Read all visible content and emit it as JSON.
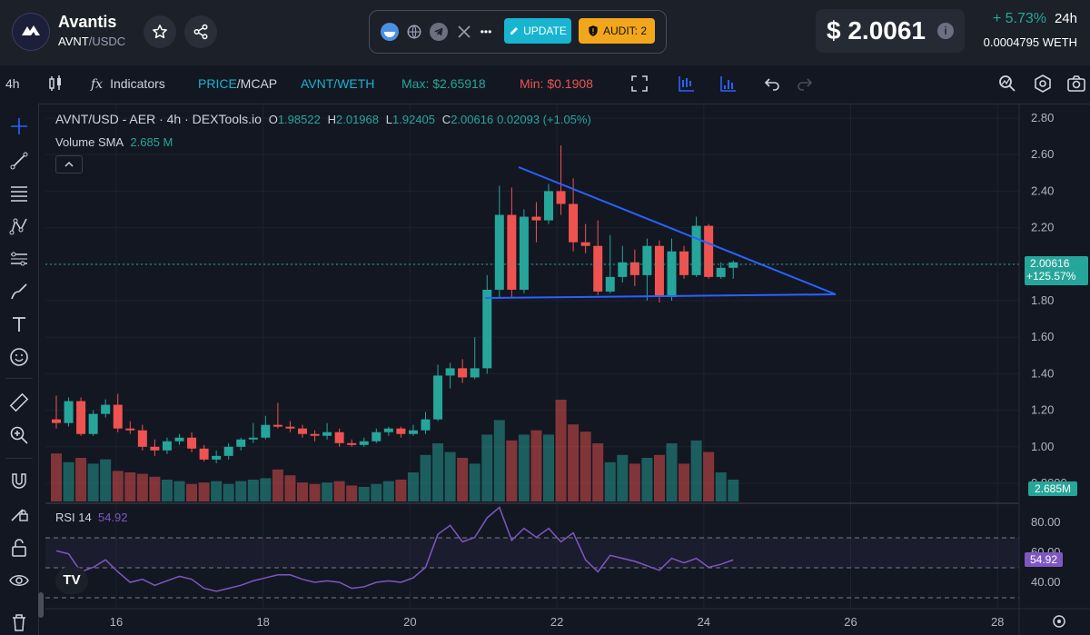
{
  "header": {
    "token_name": "Avantis",
    "base": "AVNT",
    "separator": "/",
    "quote": "USDC",
    "update_label": "UPDATE",
    "audit_label": "AUDIT: 2",
    "more_label": "•••",
    "price": "$ 2.0061",
    "info_label": "i",
    "change": "+ 5.73%",
    "period": "24h",
    "weth_value": "0.0004795  WETH"
  },
  "toolbar": {
    "interval": "4h",
    "indicators": "Indicators",
    "price_label": "PRICE",
    "mcap_label": "/MCAP",
    "pair_label": "AVNT/WETH",
    "max_label": "Max: $2.65918",
    "min_label": "Min: $0.1908"
  },
  "legend": {
    "title": "AVNT/USD - AER · 4h · DEXTools.io",
    "o_key": "O",
    "o_val": "1.98522",
    "h_key": "H",
    "h_val": "2.01968",
    "l_key": "L",
    "l_val": "1.92405",
    "c_key": "C",
    "c_val": "2.00616",
    "change": "0.02093 (+1.05%)",
    "volume_label": "Volume SMA",
    "volume_value": "2.685 M",
    "rsi_label": "RSI 14",
    "rsi_value": "54.92",
    "tv_logo": "TV"
  },
  "price_tag": {
    "price": "2.00616",
    "pct": "+125.57%"
  },
  "volume_tag": "2.685M",
  "rsi_tag": "54.92",
  "colors": {
    "up": "#26a69a",
    "down": "#ef5350",
    "trendline": "#2962ff",
    "rsi": "#7e57c2",
    "accent": "#17b5cf",
    "audit": "#f2a71b"
  },
  "chart_data": {
    "type": "candlestick",
    "price_axis_ticks": [
      "2.80",
      "2.60",
      "2.40",
      "2.20",
      "2.00",
      "1.80",
      "1.60",
      "1.40",
      "1.20",
      "1.00",
      "0.8000"
    ],
    "rsi_axis_ticks": [
      "80.00",
      "60.00",
      "40.00"
    ],
    "x_ticks": [
      "16",
      "18",
      "20",
      "22",
      "24",
      "26",
      "28"
    ],
    "candles": [
      [
        1.15,
        1.13,
        1.28,
        1.1
      ],
      [
        1.13,
        1.25,
        1.27,
        1.11
      ],
      [
        1.25,
        1.07,
        1.27,
        1.06
      ],
      [
        1.07,
        1.18,
        1.2,
        1.06
      ],
      [
        1.18,
        1.23,
        1.26,
        1.16
      ],
      [
        1.23,
        1.1,
        1.29,
        1.08
      ],
      [
        1.1,
        1.09,
        1.14,
        1.07
      ],
      [
        1.09,
        1.0,
        1.12,
        0.98
      ],
      [
        1.0,
        0.98,
        1.04,
        0.95
      ],
      [
        0.98,
        1.03,
        1.05,
        0.96
      ],
      [
        1.03,
        1.05,
        1.07,
        1.01
      ],
      [
        1.05,
        0.99,
        1.08,
        0.97
      ],
      [
        0.99,
        0.93,
        1.01,
        0.92
      ],
      [
        0.93,
        0.95,
        0.98,
        0.91
      ],
      [
        0.95,
        1.0,
        1.02,
        0.93
      ],
      [
        1.0,
        1.04,
        1.05,
        0.98
      ],
      [
        1.04,
        1.05,
        1.13,
        1.02
      ],
      [
        1.05,
        1.12,
        1.17,
        1.04
      ],
      [
        1.12,
        1.11,
        1.24,
        1.1
      ],
      [
        1.11,
        1.1,
        1.14,
        1.08
      ],
      [
        1.1,
        1.07,
        1.12,
        1.05
      ],
      [
        1.07,
        1.06,
        1.09,
        1.03
      ],
      [
        1.06,
        1.08,
        1.13,
        1.04
      ],
      [
        1.08,
        1.02,
        1.1,
        1.0
      ],
      [
        1.02,
        1.01,
        1.04,
        1.0
      ],
      [
        1.01,
        1.03,
        1.05,
        1.0
      ],
      [
        1.03,
        1.08,
        1.1,
        1.02
      ],
      [
        1.08,
        1.1,
        1.11,
        1.06
      ],
      [
        1.1,
        1.07,
        1.11,
        1.05
      ],
      [
        1.07,
        1.09,
        1.12,
        1.06
      ],
      [
        1.09,
        1.15,
        1.19,
        1.07
      ],
      [
        1.15,
        1.39,
        1.45,
        1.14
      ],
      [
        1.39,
        1.43,
        1.46,
        1.32
      ],
      [
        1.43,
        1.38,
        1.48,
        1.35
      ],
      [
        1.38,
        1.43,
        1.6,
        1.37
      ],
      [
        1.43,
        1.86,
        1.94,
        1.4
      ],
      [
        1.86,
        2.27,
        2.43,
        1.82
      ],
      [
        2.27,
        1.86,
        2.42,
        1.82
      ],
      [
        1.86,
        2.26,
        2.3,
        1.84
      ],
      [
        2.26,
        2.24,
        2.34,
        2.12
      ],
      [
        2.24,
        2.4,
        2.44,
        2.22
      ],
      [
        2.4,
        2.33,
        2.65,
        2.27
      ],
      [
        2.33,
        2.12,
        2.47,
        2.07
      ],
      [
        2.12,
        2.1,
        2.22,
        2.06
      ],
      [
        2.1,
        1.85,
        2.24,
        1.83
      ],
      [
        1.85,
        1.93,
        2.16,
        1.84
      ],
      [
        1.93,
        2.01,
        2.1,
        1.9
      ],
      [
        2.01,
        1.94,
        2.08,
        1.88
      ],
      [
        1.94,
        2.1,
        2.14,
        1.8
      ],
      [
        2.1,
        1.82,
        2.13,
        1.79
      ],
      [
        1.82,
        2.07,
        2.14,
        1.8
      ],
      [
        2.07,
        1.94,
        2.1,
        1.92
      ],
      [
        1.94,
        2.21,
        2.26,
        1.93
      ],
      [
        2.21,
        1.93,
        2.22,
        1.92
      ],
      [
        1.93,
        1.98,
        2.01,
        1.92
      ],
      [
        1.98,
        2.01,
        2.02,
        1.92
      ]
    ],
    "volume": [
      33,
      27,
      30,
      26,
      29,
      21,
      20,
      19,
      17,
      15,
      14,
      12,
      13,
      14,
      12,
      14,
      15,
      16,
      22,
      18,
      13,
      12,
      13,
      14,
      11,
      10,
      12,
      14,
      15,
      20,
      32,
      40,
      34,
      30,
      26,
      46,
      56,
      42,
      46,
      49,
      46,
      70,
      53,
      48,
      40,
      27,
      32,
      26,
      30,
      32,
      40,
      26,
      42,
      34,
      20,
      15
    ],
    "rsi": [
      61,
      59,
      47,
      50,
      55,
      47,
      40,
      42,
      38,
      41,
      44,
      42,
      36,
      34,
      36,
      38,
      41,
      43,
      45,
      45,
      42,
      40,
      41,
      40,
      36,
      37,
      40,
      41,
      40,
      43,
      50,
      72,
      78,
      67,
      70,
      83,
      90,
      68,
      76,
      70,
      76,
      67,
      73,
      55,
      47,
      58,
      56,
      54,
      51,
      48,
      56,
      53,
      56,
      50,
      52,
      55
    ]
  }
}
